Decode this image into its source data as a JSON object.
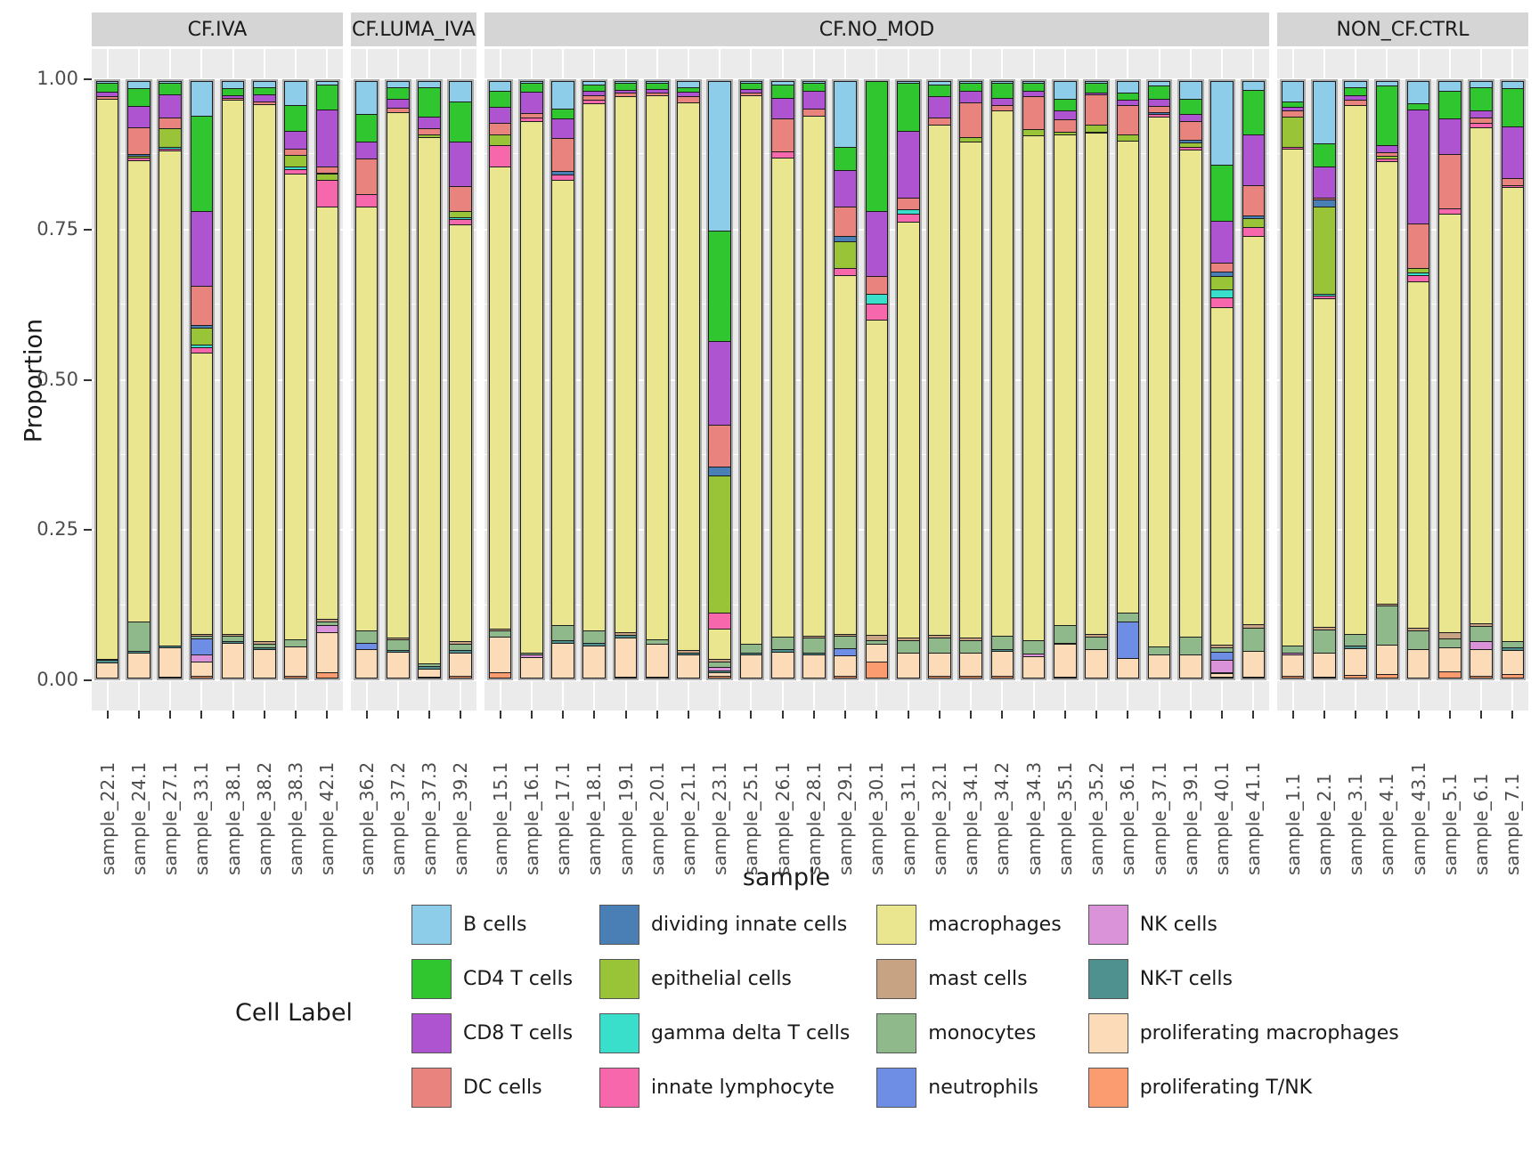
{
  "chart_data": {
    "type": "bar",
    "subtype": "stacked-proportion-faceted",
    "ylabel": "Proportion",
    "xlabel": "sample",
    "ylim": [
      0,
      1
    ],
    "y_ticks": [
      "1.00",
      "0.75",
      "0.50",
      "0.25",
      "0.00"
    ],
    "grid": "white-on-grey-panels",
    "legend_position": "bottom",
    "legend_title": "Cell Label",
    "categories": [
      "B cells",
      "CD4 T cells",
      "CD8 T cells",
      "DC cells",
      "dividing innate cells",
      "epithelial cells",
      "gamma delta T cells",
      "innate lymphocyte",
      "macrophages",
      "mast cells",
      "monocytes",
      "neutrophils",
      "NK cells",
      "NK-T cells",
      "proliferating macrophages",
      "proliferating T/NK"
    ],
    "colors": [
      "#8dcdea",
      "#2fc62f",
      "#ae54d0",
      "#e8837e",
      "#4a7fb5",
      "#9ac437",
      "#3adfcc",
      "#f767ab",
      "#eae58f",
      "#c7a383",
      "#90b98b",
      "#6e8ee6",
      "#da93d8",
      "#4e918f",
      "#fcdcb8",
      "#fa9c70"
    ],
    "stack_order_note": "values arrays follow categories order, stacked top-to-bottom in bars",
    "facets": [
      {
        "label": "CF.IVA",
        "samples": [
          {
            "label": "sample_22.1",
            "values": [
              0.004,
              0.014,
              0.008,
              0.004,
              0,
              0,
              0,
              0,
              0.937,
              0.002,
              0,
              0,
              0,
              0.004,
              0.027,
              0
            ]
          },
          {
            "label": "sample_24.1",
            "values": [
              0.012,
              0.03,
              0.036,
              0.045,
              0.002,
              0.004,
              0,
              0.004,
              0.772,
              0,
              0.048,
              0,
              0,
              0.004,
              0.043,
              0
            ]
          },
          {
            "label": "sample_27.1",
            "values": [
              0.004,
              0.018,
              0.04,
              0.018,
              0,
              0.03,
              0.003,
              0.004,
              0.828,
              0,
              0,
              0,
              0,
              0.003,
              0.05,
              0.002
            ]
          },
          {
            "label": "sample_33.1",
            "values": [
              0.058,
              0.16,
              0.125,
              0.065,
              0.005,
              0.028,
              0.004,
              0.01,
              0.47,
              0.004,
              0.004,
              0.026,
              0.012,
              0,
              0.025,
              0.004
            ]
          },
          {
            "label": "sample_38.1",
            "values": [
              0.012,
              0.012,
              0.004,
              0.004,
              0,
              0,
              0,
              0,
              0.893,
              0.003,
              0.01,
              0,
              0,
              0.002,
              0.06,
              0
            ]
          },
          {
            "label": "sample_38.2",
            "values": [
              0.01,
              0.012,
              0.012,
              0.005,
              0,
              0,
              0,
              0,
              0.898,
              0.004,
              0.007,
              0,
              0,
              0.002,
              0.05,
              0
            ]
          },
          {
            "label": "sample_38.3",
            "values": [
              0.04,
              0.044,
              0.03,
              0.01,
              0,
              0.02,
              0.004,
              0.008,
              0.778,
              0,
              0.012,
              0,
              0,
              0,
              0.05,
              0.004
            ]
          },
          {
            "label": "sample_42.1",
            "values": [
              0.006,
              0.042,
              0.096,
              0.01,
              0.002,
              0.01,
              0,
              0.044,
              0.69,
              0.004,
              0.006,
              0,
              0.012,
              0,
              0.068,
              0.01
            ]
          }
        ]
      },
      {
        "label": "CF.LUMA_IVA",
        "samples": [
          {
            "label": "sample_36.2",
            "values": [
              0.055,
              0.047,
              0.028,
              0.06,
              0,
              0,
              0,
              0.02,
              0.71,
              0,
              0.02,
              0.01,
              0,
              0,
              0.05,
              0
            ]
          },
          {
            "label": "sample_37.2",
            "values": [
              0.01,
              0.02,
              0.015,
              0.008,
              0,
              0,
              0,
              0,
              0.878,
              0.003,
              0.018,
              0,
              0,
              0.003,
              0.045,
              0
            ]
          },
          {
            "label": "sample_37.3",
            "values": [
              0.01,
              0.05,
              0.02,
              0.01,
              0,
              0.005,
              0,
              0,
              0.88,
              0,
              0.005,
              0,
              0,
              0.005,
              0.013,
              0.002
            ]
          },
          {
            "label": "sample_39.2",
            "values": [
              0.035,
              0.066,
              0.075,
              0.042,
              0,
              0.01,
              0.004,
              0.008,
              0.698,
              0.004,
              0.01,
              0,
              0,
              0.004,
              0.04,
              0.004
            ]
          }
        ]
      },
      {
        "label": "CF.NO_MOD",
        "samples": [
          {
            "label": "sample_15.1",
            "values": [
              0.016,
              0.027,
              0.027,
              0.019,
              0,
              0.018,
              0,
              0.037,
              0.772,
              0.004,
              0.01,
              0,
              0,
              0,
              0.06,
              0.01
            ]
          },
          {
            "label": "sample_16.1",
            "values": [
              0.004,
              0.014,
              0.036,
              0.008,
              0,
              0,
              0,
              0.006,
              0.888,
              0,
              0.004,
              0,
              0.004,
              0,
              0.036,
              0
            ]
          },
          {
            "label": "sample_17.1",
            "values": [
              0.047,
              0.016,
              0.033,
              0.055,
              0.006,
              0,
              0,
              0.009,
              0.745,
              0,
              0.025,
              0,
              0,
              0.004,
              0.06,
              0
            ]
          },
          {
            "label": "sample_18.1",
            "values": [
              0.006,
              0.01,
              0.008,
              0.008,
              0,
              0,
              0,
              0.006,
              0.882,
              0,
              0.02,
              0,
              0,
              0.005,
              0.055,
              0
            ]
          },
          {
            "label": "sample_19.1",
            "values": [
              0.003,
              0.012,
              0.004,
              0.006,
              0,
              0,
              0,
              0,
              0.898,
              0.004,
              0,
              0,
              0,
              0.005,
              0.065,
              0.003
            ]
          },
          {
            "label": "sample_20.1",
            "values": [
              0.004,
              0.01,
              0.006,
              0.004,
              0,
              0,
              0,
              0,
              0.91,
              0,
              0.008,
              0,
              0,
              0,
              0.055,
              0.003
            ]
          },
          {
            "label": "sample_21.1",
            "values": [
              0.01,
              0.008,
              0.008,
              0.01,
              0,
              0,
              0,
              0,
              0.916,
              0.004,
              0,
              0,
              0,
              0.004,
              0.04,
              0
            ]
          },
          {
            "label": "sample_23.1",
            "values": [
              0.25,
              0.185,
              0.14,
              0.07,
              0.015,
              0.23,
              0,
              0.027,
              0.05,
              0.005,
              0.008,
              0,
              0.006,
              0.003,
              0.006,
              0.005
            ]
          },
          {
            "label": "sample_25.1",
            "values": [
              0.004,
              0.01,
              0.006,
              0.004,
              0,
              0,
              0,
              0,
              0.917,
              0,
              0.015,
              0,
              0,
              0.004,
              0.04,
              0
            ]
          },
          {
            "label": "sample_26.1",
            "values": [
              0.006,
              0.022,
              0.035,
              0.055,
              0,
              0,
              0,
              0.01,
              0.802,
              0,
              0.02,
              0,
              0,
              0.005,
              0.045,
              0
            ]
          },
          {
            "label": "sample_28.1",
            "values": [
              0.004,
              0.012,
              0.03,
              0.012,
              0,
              0,
              0,
              0,
              0.87,
              0.004,
              0.025,
              0,
              0,
              0.003,
              0.04,
              0
            ]
          },
          {
            "label": "sample_29.1",
            "values": [
              0.11,
              0.04,
              0.06,
              0.05,
              0.008,
              0.045,
              0,
              0.012,
              0.6,
              0.004,
              0.02,
              0.012,
              0,
              0,
              0.035,
              0.004
            ]
          },
          {
            "label": "sample_30.1",
            "values": [
              0,
              0.218,
              0.108,
              0.03,
              0,
              0,
              0.017,
              0.026,
              0.528,
              0.008,
              0.006,
              0,
              0,
              0,
              0.03,
              0.029
            ]
          },
          {
            "label": "sample_31.1",
            "values": [
              0.004,
              0.08,
              0.111,
              0.02,
              0,
              0,
              0.008,
              0.012,
              0.697,
              0.004,
              0.02,
              0,
              0,
              0,
              0.044,
              0
            ]
          },
          {
            "label": "sample_32.1",
            "values": [
              0.006,
              0.02,
              0.035,
              0.012,
              0,
              0,
              0,
              0,
              0.854,
              0.004,
              0.025,
              0,
              0,
              0,
              0.04,
              0.004
            ]
          },
          {
            "label": "sample_34.1",
            "values": [
              0.004,
              0.012,
              0.02,
              0.058,
              0,
              0.008,
              0,
              0,
              0.83,
              0.004,
              0.02,
              0,
              0,
              0,
              0.04,
              0.004
            ]
          },
          {
            "label": "sample_34.2",
            "values": [
              0.004,
              0.025,
              0.012,
              0.008,
              0,
              0,
              0,
              0,
              0.879,
              0,
              0.022,
              0,
              0,
              0.004,
              0.042,
              0.004
            ]
          },
          {
            "label": "sample_34.3",
            "values": [
              0.004,
              0.012,
              0.01,
              0.055,
              0,
              0.01,
              0,
              0,
              0.845,
              0,
              0.022,
              0,
              0.004,
              0,
              0.038,
              0
            ]
          },
          {
            "label": "sample_35.1",
            "values": [
              0.03,
              0.02,
              0.015,
              0.02,
              0,
              0.005,
              0,
              0,
              0.82,
              0,
              0.03,
              0,
              0,
              0.002,
              0.055,
              0.003
            ]
          },
          {
            "label": "sample_35.2",
            "values": [
              0.004,
              0.015,
              0.004,
              0.05,
              0,
              0.012,
              0,
              0.002,
              0.839,
              0.004,
              0.02,
              0,
              0,
              0,
              0.05,
              0
            ]
          },
          {
            "label": "sample_36.1",
            "values": [
              0.02,
              0.012,
              0.008,
              0.05,
              0,
              0.01,
              0,
              0,
              0.79,
              0,
              0.015,
              0.06,
              0,
              0,
              0.035,
              0
            ]
          },
          {
            "label": "sample_37.1",
            "values": [
              0.008,
              0.022,
              0.012,
              0.01,
              0.004,
              0,
              0,
              0.004,
              0.886,
              0,
              0.014,
              0,
              0,
              0,
              0.04,
              0
            ]
          },
          {
            "label": "sample_39.1",
            "values": [
              0.03,
              0.025,
              0.012,
              0.032,
              0.004,
              0.008,
              0,
              0.004,
              0.815,
              0,
              0.03,
              0,
              0,
              0,
              0.04,
              0
            ]
          },
          {
            "label": "sample_40.1",
            "values": [
              0.14,
              0.095,
              0.07,
              0.014,
              0.008,
              0.022,
              0.014,
              0.016,
              0.565,
              0.004,
              0.008,
              0.014,
              0.02,
              0.002,
              0.006,
              0.002
            ]
          },
          {
            "label": "sample_41.1",
            "values": [
              0.015,
              0.075,
              0.085,
              0.05,
              0.005,
              0.015,
              0,
              0.015,
              0.65,
              0.005,
              0.04,
              0,
              0,
              0,
              0.043,
              0.002
            ]
          }
        ]
      },
      {
        "label": "NON_CF.CTRL",
        "samples": [
          {
            "label": "sample_1.1",
            "values": [
              0.034,
              0.01,
              0.006,
              0.01,
              0,
              0.05,
              0,
              0.004,
              0.83,
              0,
              0.012,
              0,
              0.004,
              0,
              0.036,
              0.004
            ]
          },
          {
            "label": "sample_2.1",
            "values": [
              0.105,
              0.038,
              0.052,
              0.004,
              0.012,
              0.145,
              0.004,
              0.004,
              0.55,
              0.004,
              0.04,
              0,
              0,
              0,
              0.04,
              0.002
            ]
          },
          {
            "label": "sample_3.1",
            "values": [
              0.01,
              0.014,
              0.008,
              0.008,
              0,
              0,
              0,
              0,
              0.885,
              0,
              0.02,
              0,
              0,
              0.004,
              0.045,
              0.006
            ]
          },
          {
            "label": "sample_4.1",
            "values": [
              0.008,
              0.1,
              0.012,
              0.006,
              0,
              0.004,
              0,
              0.004,
              0.74,
              0.004,
              0.065,
              0,
              0,
              0,
              0.05,
              0.007
            ]
          },
          {
            "label": "sample_43.1",
            "values": [
              0.038,
              0.01,
              0.19,
              0.075,
              0,
              0.008,
              0.004,
              0.01,
              0.58,
              0.005,
              0.03,
              0,
              0,
              0,
              0.05,
              0
            ]
          },
          {
            "label": "sample_5.1",
            "values": [
              0.016,
              0.047,
              0.06,
              0.09,
              0,
              0,
              0,
              0.01,
              0.7,
              0.01,
              0.015,
              0,
              0,
              0,
              0.04,
              0.012
            ]
          },
          {
            "label": "sample_6.1",
            "values": [
              0.01,
              0.04,
              0.012,
              0.008,
              0,
              0,
              0,
              0.008,
              0.83,
              0.004,
              0.025,
              0,
              0.014,
              0,
              0.045,
              0.004
            ]
          },
          {
            "label": "sample_7.1",
            "values": [
              0.012,
              0.065,
              0.085,
              0.012,
              0,
              0,
              0,
              0.004,
              0.76,
              0,
              0.01,
              0,
              0,
              0.004,
              0.04,
              0.008
            ]
          }
        ]
      }
    ]
  }
}
